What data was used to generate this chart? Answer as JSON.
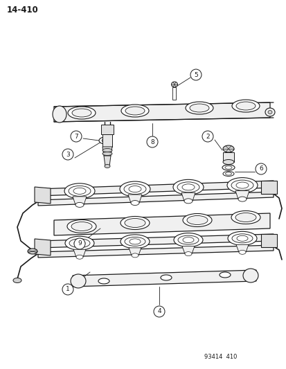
{
  "page_number": "14-410",
  "footer_code": "93414  410",
  "background_color": "#ffffff",
  "line_color": "#1a1a1a",
  "figsize": [
    4.14,
    5.33
  ],
  "dpi": 100
}
